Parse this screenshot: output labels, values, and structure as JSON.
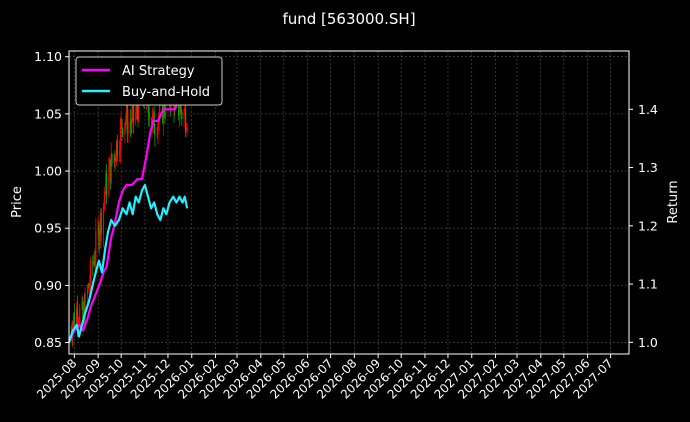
{
  "chart_data": {
    "type": "line",
    "title": "fund [563000.SH]",
    "ylabel_left": "Price",
    "ylabel_right": "Return",
    "x_ticks": [
      "2025-08",
      "2025-09",
      "2025-10",
      "2025-11",
      "2025-12",
      "2026-01",
      "2026-02",
      "2026-03",
      "2026-04",
      "2026-05",
      "2026-06",
      "2026-07",
      "2026-08",
      "2026-09",
      "2026-10",
      "2026-11",
      "2026-12",
      "2027-01",
      "2027-02",
      "2027-03",
      "2027-04",
      "2027-05",
      "2027-06",
      "2027-07"
    ],
    "x_range": [
      "2025-07-25",
      "2027-07-25"
    ],
    "y_left_range": [
      0.84,
      1.105
    ],
    "y_left_ticks": [
      0.85,
      0.9,
      0.95,
      1.0,
      1.05,
      1.1
    ],
    "y_right_range": [
      0.98,
      1.5
    ],
    "y_right_ticks": [
      1.0,
      1.1,
      1.2,
      1.3,
      1.4
    ],
    "grid": true,
    "legend_position": "top-left",
    "colors": {
      "up": "#ff0000",
      "down": "#00aa00",
      "ai": "#ff00ff",
      "bh": "#22f0ff"
    },
    "series": [
      {
        "name": "AI Strategy",
        "axis": "right",
        "points": [
          [
            "2025-07-25",
            1.0
          ],
          [
            "2025-08-01",
            1.02
          ],
          [
            "2025-08-08",
            1.03
          ],
          [
            "2025-08-12",
            1.02
          ],
          [
            "2025-08-18",
            1.04
          ],
          [
            "2025-08-22",
            1.06
          ],
          [
            "2025-08-28",
            1.08
          ],
          [
            "2025-09-03",
            1.1
          ],
          [
            "2025-09-08",
            1.12
          ],
          [
            "2025-09-12",
            1.13
          ],
          [
            "2025-09-18",
            1.18
          ],
          [
            "2025-09-22",
            1.2
          ],
          [
            "2025-09-28",
            1.24
          ],
          [
            "2025-10-03",
            1.26
          ],
          [
            "2025-10-08",
            1.27
          ],
          [
            "2025-10-15",
            1.27
          ],
          [
            "2025-10-22",
            1.28
          ],
          [
            "2025-10-28",
            1.28
          ],
          [
            "2025-11-03",
            1.32
          ],
          [
            "2025-11-08",
            1.36
          ],
          [
            "2025-11-12",
            1.38
          ],
          [
            "2025-11-18",
            1.38
          ],
          [
            "2025-11-25",
            1.4
          ],
          [
            "2025-12-03",
            1.4
          ],
          [
            "2025-12-10",
            1.4
          ],
          [
            "2025-12-16",
            1.42
          ],
          [
            "2025-12-20",
            1.42
          ],
          [
            "2025-12-26",
            1.42
          ]
        ]
      },
      {
        "name": "Buy-and-Hold",
        "axis": "right",
        "points": [
          [
            "2025-07-25",
            1.0
          ],
          [
            "2025-07-30",
            1.02
          ],
          [
            "2025-08-04",
            1.03
          ],
          [
            "2025-08-07",
            1.01
          ],
          [
            "2025-08-11",
            1.03
          ],
          [
            "2025-08-15",
            1.05
          ],
          [
            "2025-08-20",
            1.07
          ],
          [
            "2025-08-25",
            1.1
          ],
          [
            "2025-08-29",
            1.12
          ],
          [
            "2025-09-02",
            1.14
          ],
          [
            "2025-09-06",
            1.12
          ],
          [
            "2025-09-10",
            1.16
          ],
          [
            "2025-09-14",
            1.19
          ],
          [
            "2025-09-18",
            1.21
          ],
          [
            "2025-09-23",
            1.2
          ],
          [
            "2025-09-28",
            1.21
          ],
          [
            "2025-10-03",
            1.23
          ],
          [
            "2025-10-08",
            1.22
          ],
          [
            "2025-10-12",
            1.24
          ],
          [
            "2025-10-16",
            1.22
          ],
          [
            "2025-10-20",
            1.25
          ],
          [
            "2025-10-24",
            1.24
          ],
          [
            "2025-10-28",
            1.26
          ],
          [
            "2025-11-01",
            1.27
          ],
          [
            "2025-11-05",
            1.25
          ],
          [
            "2025-11-09",
            1.23
          ],
          [
            "2025-11-13",
            1.24
          ],
          [
            "2025-11-17",
            1.22
          ],
          [
            "2025-11-21",
            1.21
          ],
          [
            "2025-11-25",
            1.23
          ],
          [
            "2025-11-29",
            1.22
          ],
          [
            "2025-12-03",
            1.24
          ],
          [
            "2025-12-08",
            1.25
          ],
          [
            "2025-12-12",
            1.24
          ],
          [
            "2025-12-16",
            1.25
          ],
          [
            "2025-12-20",
            1.24
          ],
          [
            "2025-12-23",
            1.25
          ],
          [
            "2025-12-26",
            1.23
          ]
        ]
      }
    ],
    "price_anchors": [
      [
        "2025-07-25",
        0.86
      ],
      [
        "2025-08-05",
        0.88
      ],
      [
        "2025-08-12",
        0.87
      ],
      [
        "2025-08-20",
        0.9
      ],
      [
        "2025-08-28",
        0.93
      ],
      [
        "2025-09-05",
        0.96
      ],
      [
        "2025-09-12",
        0.99
      ],
      [
        "2025-09-20",
        1.01
      ],
      [
        "2025-09-28",
        1.03
      ],
      [
        "2025-10-05",
        1.05
      ],
      [
        "2025-10-12",
        1.04
      ],
      [
        "2025-10-20",
        1.05
      ],
      [
        "2025-10-28",
        1.07
      ],
      [
        "2025-11-05",
        1.06
      ],
      [
        "2025-11-12",
        1.04
      ],
      [
        "2025-11-20",
        1.05
      ],
      [
        "2025-11-28",
        1.06
      ],
      [
        "2025-12-05",
        1.07
      ],
      [
        "2025-12-12",
        1.06
      ],
      [
        "2025-12-20",
        1.05
      ],
      [
        "2025-12-26",
        1.05
      ]
    ]
  }
}
